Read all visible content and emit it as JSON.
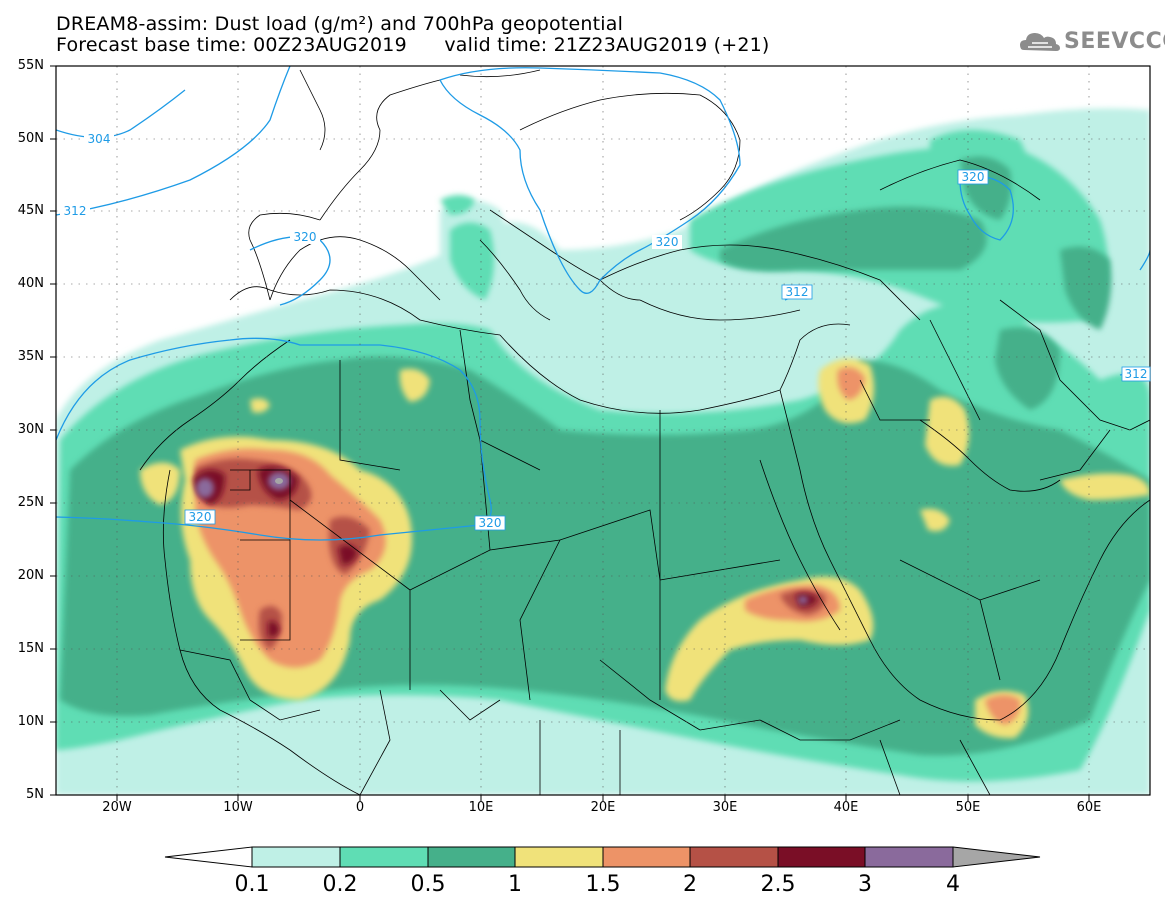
{
  "title": {
    "line1": "DREAM8-assim: Dust load (g/m²) and 700hPa geopotential",
    "line2": "Forecast base time: 00Z23AUG2019      valid time: 21Z23AUG2019 (+21)"
  },
  "logo": {
    "text": "SEEVCCC",
    "icon": "cloud-icon"
  },
  "latitude_labels": [
    "55N",
    "50N",
    "45N",
    "40N",
    "35N",
    "30N",
    "25N",
    "20N",
    "15N",
    "10N",
    "5N"
  ],
  "longitude_labels": [
    "20W",
    "10W",
    "0",
    "10E",
    "20E",
    "30E",
    "40E",
    "50E",
    "60E"
  ],
  "contour_labels": [
    "304",
    "312",
    "320",
    "320",
    "320",
    "320",
    "312",
    "320",
    "312"
  ],
  "colorbar": {
    "labels": [
      "0.1",
      "0.2",
      "0.5",
      "1",
      "1.5",
      "2",
      "2.5",
      "3",
      "4"
    ],
    "colors": [
      "#bff0e6",
      "#5fddb4",
      "#45b08a",
      "#f0e27a",
      "#ed9367",
      "#b55146",
      "#7a0e26",
      "#8a6a9c",
      "#a6a6a6"
    ]
  },
  "palette": {
    "c01": "#bff0e6",
    "c02": "#5fddb4",
    "c05": "#45b08a",
    "c1": "#f0e27a",
    "c15": "#ed9367",
    "c2": "#b55146",
    "c25": "#7a0e26",
    "c3": "#8a6a9c",
    "contour": "#1e9be6"
  }
}
